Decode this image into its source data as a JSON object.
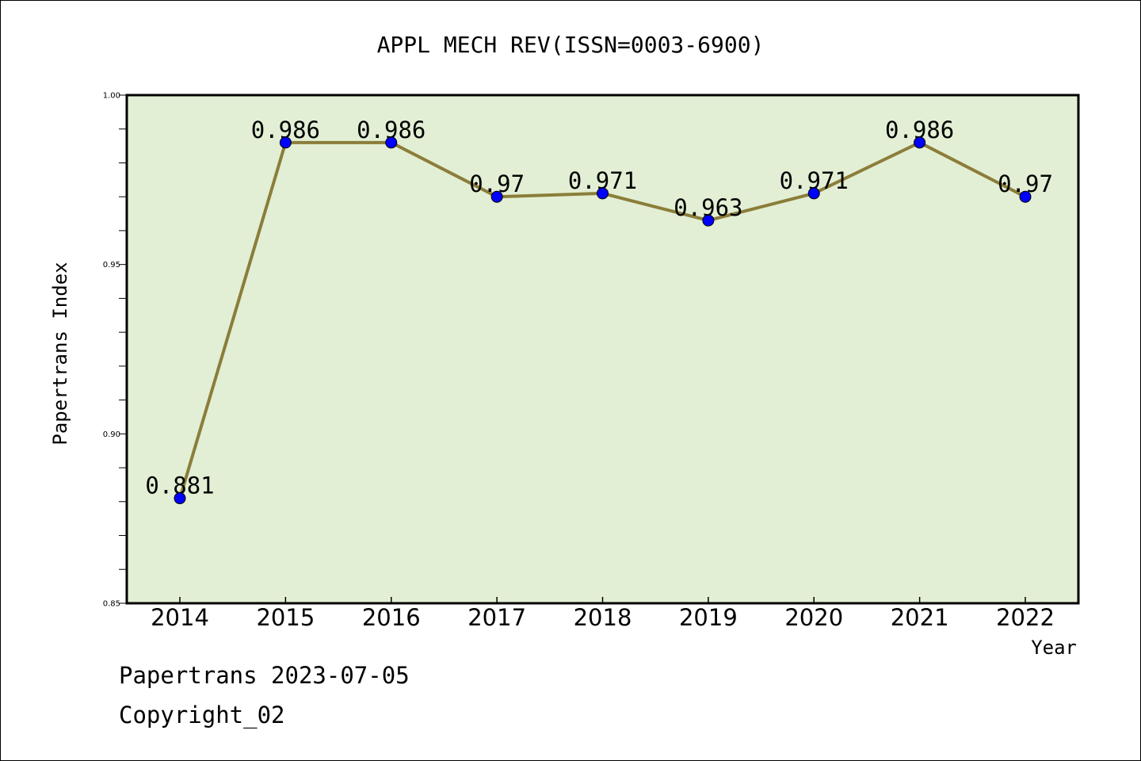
{
  "chart_data": {
    "type": "line",
    "title": "APPL MECH REV(ISSN=0003-6900)",
    "xlabel": "Year",
    "ylabel": "Papertrans Index",
    "categories": [
      "2014",
      "2015",
      "2016",
      "2017",
      "2018",
      "2019",
      "2020",
      "2021",
      "2022"
    ],
    "series": [
      {
        "values": [
          0.881,
          0.986,
          0.986,
          0.97,
          0.971,
          0.963,
          0.971,
          0.986,
          0.97
        ],
        "labels": [
          "0.881",
          "0.986",
          "0.986",
          "0.97",
          "0.971",
          "0.963",
          "0.971",
          "0.986",
          "0.97"
        ]
      }
    ],
    "ylim": [
      0.85,
      1.0
    ],
    "yticks": [
      "0.85",
      "0.90",
      "0.95",
      "1.00"
    ],
    "grid": false,
    "colors": {
      "plot_background": "#e2efd4",
      "line": "#8b7d3a",
      "marker": "#0000ff"
    }
  },
  "footer": {
    "line1": "Papertrans 2023-07-05",
    "line2": "Copyright_02"
  }
}
